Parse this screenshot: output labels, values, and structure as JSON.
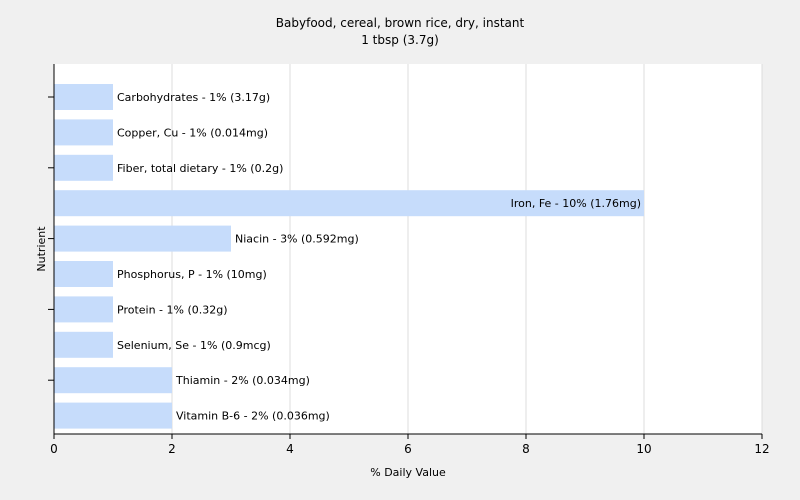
{
  "chart_data": {
    "type": "bar",
    "orientation": "horizontal",
    "title": "Babyfood, cereal, brown rice, dry, instant",
    "subtitle": "1 tbsp (3.7g)",
    "xlabel": "% Daily Value",
    "ylabel": "Nutrient",
    "xlim": [
      0,
      12
    ],
    "xticks": [
      "0",
      "2",
      "4",
      "6",
      "8",
      "10",
      "12"
    ],
    "grid": true,
    "categories": [
      "Carbohydrates",
      "Copper, Cu",
      "Fiber, total dietary",
      "Iron, Fe",
      "Niacin",
      "Phosphorus, P",
      "Protein",
      "Selenium, Se",
      "Thiamin",
      "Vitamin B-6"
    ],
    "values": [
      1,
      1,
      1,
      10,
      3,
      1,
      1,
      1,
      2,
      2
    ],
    "labels": [
      "Carbohydrates - 1% (3.17g)",
      "Copper, Cu - 1% (0.014mg)",
      "Fiber, total dietary - 1% (0.2g)",
      "Iron, Fe - 10% (1.76mg)",
      "Niacin - 3% (0.592mg)",
      "Phosphorus, P - 1% (10mg)",
      "Protein - 1% (0.32g)",
      "Selenium, Se - 1% (0.9mcg)",
      "Thiamin - 2% (0.034mg)",
      "Vitamin B-6 - 2% (0.036mg)"
    ],
    "colors": {
      "bar": "#c6dcfb",
      "background": "#f0f0f0",
      "plot_background": "#ffffff",
      "grid": "#dcdcdc",
      "axis": "#000000"
    }
  }
}
